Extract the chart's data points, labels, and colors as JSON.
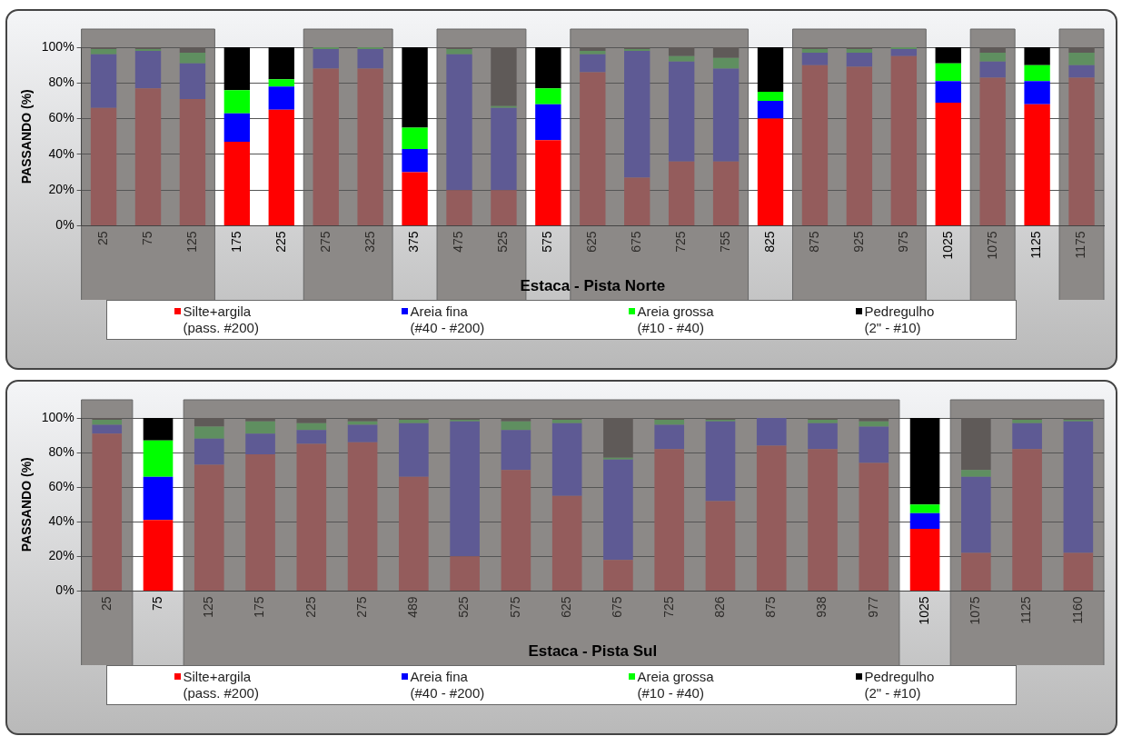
{
  "chart_data": [
    {
      "type": "bar",
      "stacked": true,
      "xlabel": "Estaca - Pista Norte",
      "ylabel": "PASSANDO (%)",
      "categories": [
        "25",
        "75",
        "125",
        "175",
        "225",
        "275",
        "325",
        "375",
        "475",
        "525",
        "575",
        "625",
        "675",
        "725",
        "755",
        "825",
        "875",
        "925",
        "975",
        "1025",
        "1075",
        "1125",
        "1175"
      ],
      "series": [
        {
          "name": "Silte+argila (pass. #200)",
          "color": "#ff0000",
          "values": [
            66,
            77,
            71,
            47,
            65,
            88,
            88,
            30,
            20,
            20,
            48,
            86,
            27,
            36,
            36,
            60,
            90,
            89,
            95,
            69,
            83,
            68,
            83
          ],
          "colors": [
            "#945c5c",
            "#945c5c",
            "#945c5c",
            "#ff0000",
            "#ff0000",
            "#945c5c",
            "#945c5c",
            "#ff0000",
            "#945c5c",
            "#945c5c",
            "#ff0000",
            "#945c5c",
            "#945c5c",
            "#945c5c",
            "#945c5c",
            "#ff0000",
            "#945c5c",
            "#945c5c",
            "#945c5c",
            "#ff0000",
            "#945c5c",
            "#ff0000",
            "#945c5c"
          ]
        },
        {
          "name": "Areia fina (#40 - #200)",
          "color": "#0000ff",
          "values": [
            30,
            21,
            20,
            16,
            13,
            11,
            11,
            13,
            76,
            46,
            20,
            10,
            71,
            56,
            52,
            10,
            7,
            8,
            4,
            12,
            9,
            13,
            7
          ],
          "colors": [
            "#5e5a94",
            "#5e5a94",
            "#5e5a94",
            "#0000ff",
            "#0000ff",
            "#5e5a94",
            "#5e5a94",
            "#0000ff",
            "#5e5a94",
            "#5e5a94",
            "#0000ff",
            "#5e5a94",
            "#5e5a94",
            "#5e5a94",
            "#5e5a94",
            "#0000ff",
            "#5e5a94",
            "#5e5a94",
            "#5e5a94",
            "#0000ff",
            "#5e5a94",
            "#0000ff",
            "#5e5a94"
          ]
        },
        {
          "name": "Areia grossa (#10 - #40)",
          "color": "#00ff00",
          "values": [
            3,
            1,
            6,
            13,
            4,
            1,
            1,
            12,
            3,
            1,
            9,
            2,
            1,
            3,
            6,
            5,
            2,
            2,
            1,
            10,
            5,
            9,
            7
          ],
          "colors": [
            "#5f8f60",
            "#5f8f60",
            "#5f8f60",
            "#00ff00",
            "#00ff00",
            "#5f8f60",
            "#5f8f60",
            "#00ff00",
            "#5f8f60",
            "#5f8f60",
            "#00ff00",
            "#5f8f60",
            "#5f8f60",
            "#5f8f60",
            "#5f8f60",
            "#00ff00",
            "#5f8f60",
            "#5f8f60",
            "#5f8f60",
            "#00ff00",
            "#5f8f60",
            "#00ff00",
            "#5f8f60"
          ]
        },
        {
          "name": "Pedregulho (2\" - #10)",
          "color": "#000000",
          "values": [
            1,
            1,
            3,
            24,
            18,
            0,
            0,
            45,
            1,
            33,
            23,
            2,
            1,
            5,
            6,
            25,
            1,
            1,
            0,
            9,
            3,
            10,
            3
          ],
          "colors": [
            "#5f5a58",
            "#5f5a58",
            "#5f5a58",
            "#000000",
            "#000000",
            "#5f5a58",
            "#5f5a58",
            "#000000",
            "#5f5a58",
            "#5f5a58",
            "#000000",
            "#5f5a58",
            "#5f5a58",
            "#5f5a58",
            "#5f5a58",
            "#000000",
            "#5f5a58",
            "#5f5a58",
            "#5f5a58",
            "#000000",
            "#5f5a58",
            "#000000",
            "#5f5a58"
          ]
        }
      ],
      "ylim": [
        0,
        100
      ],
      "yticks": [
        {
          "value": 0,
          "label": "0%"
        },
        {
          "value": 20,
          "label": "20%"
        },
        {
          "value": 40,
          "label": "40%"
        },
        {
          "value": 60,
          "label": "60%"
        },
        {
          "value": 80,
          "label": "80%"
        },
        {
          "value": 100,
          "label": "100%"
        }
      ],
      "grid": "y",
      "legend": "bottom",
      "bands": [
        {
          "axis": "x",
          "from": "25",
          "to": "125",
          "color": "#8c8987"
        },
        {
          "axis": "x",
          "from": "275",
          "to": "325",
          "color": "#8c8987"
        },
        {
          "axis": "x",
          "from": "475",
          "to": "525",
          "color": "#8c8987"
        },
        {
          "axis": "x",
          "from": "625",
          "to": "755",
          "color": "#8c8987"
        },
        {
          "axis": "x",
          "from": "875",
          "to": "975",
          "color": "#8c8987"
        },
        {
          "axis": "x",
          "from": "1075",
          "to": "1075",
          "color": "#8c8987"
        },
        {
          "axis": "x",
          "from": "1175",
          "to": "1175",
          "color": "#8c8987"
        }
      ]
    },
    {
      "type": "bar",
      "stacked": true,
      "xlabel": "Estaca - Pista Sul",
      "ylabel": "PASSANDO (%)",
      "categories": [
        "25",
        "75",
        "125",
        "175",
        "225",
        "275",
        "489",
        "525",
        "575",
        "625",
        "675",
        "725",
        "826",
        "875",
        "938",
        "977",
        "1025",
        "1075",
        "1125",
        "1160"
      ],
      "series": [
        {
          "name": "Silte+argila (pass. #200)",
          "color": "#ff0000",
          "values": [
            91,
            41,
            73,
            79,
            85,
            86,
            66,
            20,
            70,
            55,
            18,
            82,
            52,
            84,
            82,
            74,
            36,
            22,
            82,
            22
          ],
          "colors": [
            "#945c5c",
            "#ff0000",
            "#945c5c",
            "#945c5c",
            "#945c5c",
            "#945c5c",
            "#945c5c",
            "#945c5c",
            "#945c5c",
            "#945c5c",
            "#945c5c",
            "#945c5c",
            "#945c5c",
            "#945c5c",
            "#945c5c",
            "#945c5c",
            "#ff0000",
            "#945c5c",
            "#945c5c",
            "#945c5c"
          ]
        },
        {
          "name": "Areia fina (#40 - #200)",
          "color": "#0000ff",
          "values": [
            5,
            25,
            15,
            12,
            8,
            10,
            31,
            78,
            23,
            42,
            58,
            14,
            46,
            16,
            15,
            21,
            9,
            44,
            15,
            76
          ],
          "colors": [
            "#5e5a94",
            "#0000ff",
            "#5e5a94",
            "#5e5a94",
            "#5e5a94",
            "#5e5a94",
            "#5e5a94",
            "#5e5a94",
            "#5e5a94",
            "#5e5a94",
            "#5e5a94",
            "#5e5a94",
            "#5e5a94",
            "#5e5a94",
            "#5e5a94",
            "#5e5a94",
            "#0000ff",
            "#5e5a94",
            "#5e5a94",
            "#5e5a94"
          ]
        },
        {
          "name": "Areia grossa (#10 - #40)",
          "color": "#00ff00",
          "values": [
            3,
            21,
            7,
            7,
            4,
            2,
            2,
            1,
            5,
            2,
            1,
            3,
            1,
            0,
            2,
            3,
            5,
            4,
            2,
            1
          ],
          "colors": [
            "#5f8f60",
            "#00ff00",
            "#5f8f60",
            "#5f8f60",
            "#5f8f60",
            "#5f8f60",
            "#5f8f60",
            "#5f8f60",
            "#5f8f60",
            "#5f8f60",
            "#5f8f60",
            "#5f8f60",
            "#5f8f60",
            "#5f8f60",
            "#5f8f60",
            "#5f8f60",
            "#00ff00",
            "#5f8f60",
            "#5f8f60",
            "#5f8f60"
          ]
        },
        {
          "name": "Pedregulho (2\" - #10)",
          "color": "#000000",
          "values": [
            1,
            13,
            5,
            2,
            3,
            2,
            1,
            1,
            2,
            1,
            23,
            1,
            1,
            0,
            1,
            2,
            50,
            30,
            1,
            1
          ],
          "colors": [
            "#5f5a58",
            "#000000",
            "#5f5a58",
            "#5f5a58",
            "#5f5a58",
            "#5f5a58",
            "#5f5a58",
            "#5f5a58",
            "#5f5a58",
            "#5f5a58",
            "#5f5a58",
            "#5f5a58",
            "#5f5a58",
            "#5f5a58",
            "#5f5a58",
            "#5f5a58",
            "#000000",
            "#5f5a58",
            "#5f5a58",
            "#5f5a58"
          ]
        }
      ],
      "ylim": [
        0,
        100
      ],
      "yticks": [
        {
          "value": 0,
          "label": "0%"
        },
        {
          "value": 20,
          "label": "20%"
        },
        {
          "value": 40,
          "label": "40%"
        },
        {
          "value": 60,
          "label": "60%"
        },
        {
          "value": 80,
          "label": "80%"
        },
        {
          "value": 100,
          "label": "100%"
        }
      ],
      "grid": "y",
      "legend": "bottom",
      "bands": [
        {
          "axis": "x",
          "from": "25",
          "to": "25",
          "color": "#8c8987"
        },
        {
          "axis": "x",
          "from": "125",
          "to": "977",
          "color": "#8c8987"
        },
        {
          "axis": "x",
          "from": "1075",
          "to": "1160",
          "color": "#8c8987"
        }
      ]
    }
  ]
}
